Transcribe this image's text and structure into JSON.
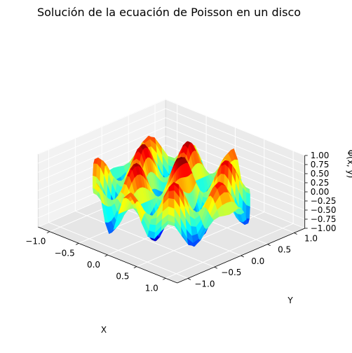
{
  "chart_data": {
    "type": "surface3d",
    "title": "Solución de la ecuación de Poisson en un disco",
    "xlabel": "X",
    "ylabel": "Y",
    "zlabel": "Φ(x, y)",
    "x_ticks": [
      "−1.0",
      "−0.5",
      "0.0",
      "0.5",
      "1.0"
    ],
    "y_ticks": [
      "−1.0",
      "−0.5",
      "0.0",
      "0.5",
      "1.0"
    ],
    "z_ticks": [
      "−1.00",
      "−0.75",
      "−0.50",
      "−0.25",
      "0.00",
      "0.25",
      "0.50",
      "0.75",
      "1.00"
    ],
    "xlim": [
      -1.2,
      1.2
    ],
    "ylim": [
      -1.2,
      1.2
    ],
    "zlim": [
      -1.0,
      1.0
    ],
    "grid": true,
    "colormap": "jet",
    "domain": "disk",
    "radius": 1.0,
    "surface_formula": "sin(3*pi*x) * cos(2*pi*y) * (1 - x^2 - y^2) style oscillation, value range -1..1"
  }
}
